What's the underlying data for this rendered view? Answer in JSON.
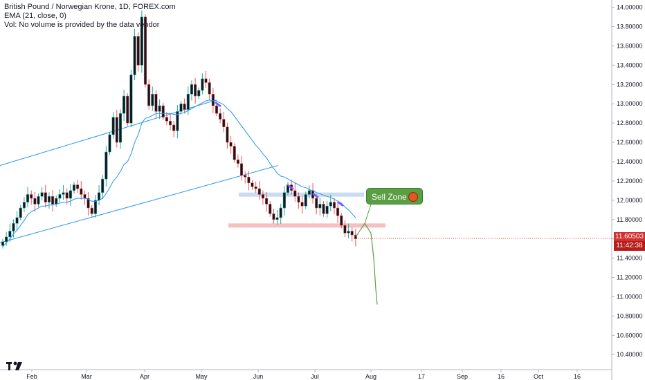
{
  "legend": {
    "title": "British Pound / Norwegian Krone, 1D, FOREX.com",
    "ema": "EMA (21, close, 0)",
    "volume": "Vol: No volume is provided by the data vendor"
  },
  "badges": {
    "last_price": "11.60503",
    "countdown": "11:42:38"
  },
  "annotations": {
    "sell_zone_label": "Sell Zone"
  },
  "colors": {
    "up_candle": "#26a69a",
    "down_candle": "#ef5350",
    "candle_body": "#131722",
    "ema": "#2196f3",
    "channel": "#2196f3",
    "resistance_zone": "#bbd3ef",
    "support_zone": "#f6b4b4",
    "projection": "#5a9e44",
    "badge_red": "#d32f2f"
  },
  "chart_data": {
    "type": "line",
    "title": "British Pound / Norwegian Krone, 1D, FOREX.com",
    "xlabel": "",
    "ylabel": "",
    "x_ticks": [
      "Feb",
      "Mar",
      "Apr",
      "May",
      "Jun",
      "Jul",
      "Aug",
      "17",
      "Sep",
      "16",
      "Oct",
      "16"
    ],
    "y_ticks": [
      "14.00000",
      "13.80000",
      "13.60000",
      "13.40000",
      "13.20000",
      "13.00000",
      "12.80000",
      "12.60000",
      "12.40000",
      "12.20000",
      "12.00000",
      "11.80000",
      "11.60000",
      "11.40000",
      "11.20000",
      "11.00000",
      "10.80000",
      "10.60000",
      "10.40000"
    ],
    "ylim": [
      10.28,
      14.04
    ],
    "last_price": 11.60503,
    "series": [
      {
        "kind": "close",
        "values": [
          11.57,
          11.62,
          11.68,
          11.76,
          11.82,
          11.92,
          11.98,
          12.06,
          12.02,
          11.96,
          12.04,
          12.08,
          11.98,
          12.04,
          11.96,
          12.02,
          12.06,
          12.08,
          12.02,
          12.1,
          12.16,
          12.12,
          12.06,
          12.02,
          11.92,
          11.86,
          12.0,
          12.08,
          12.22,
          12.5,
          12.68,
          12.86,
          12.6,
          12.9,
          13.08,
          12.8,
          13.3,
          13.7,
          13.4,
          13.9,
          13.2,
          12.98,
          13.1,
          12.92,
          12.98,
          12.86,
          12.82,
          12.78,
          12.72,
          12.92,
          13.0,
          12.94,
          13.1,
          13.2,
          13.08,
          13.14,
          13.26,
          13.22,
          13.1,
          12.98,
          12.9,
          12.84,
          12.76,
          12.6,
          12.56,
          12.42,
          12.38,
          12.26,
          12.24,
          12.18,
          12.14,
          12.12,
          12.06,
          12.02,
          11.96,
          11.86,
          11.8,
          11.82,
          11.92,
          12.08,
          12.16,
          12.1,
          12.04,
          11.98,
          11.94,
          12.06,
          12.1,
          12.02,
          11.92,
          11.96,
          11.86,
          11.94,
          11.98,
          11.92,
          11.84,
          11.74,
          11.66,
          11.68,
          11.64,
          11.6
        ]
      },
      {
        "kind": "ema-21",
        "values": [
          11.52,
          11.56,
          11.6,
          11.65,
          11.69,
          11.74,
          11.79,
          11.85,
          11.88,
          11.9,
          11.92,
          11.94,
          11.94,
          11.95,
          11.95,
          11.96,
          11.97,
          11.98,
          11.98,
          11.99,
          12.01,
          12.02,
          12.02,
          12.02,
          12.01,
          11.99,
          11.99,
          12.0,
          12.02,
          12.07,
          12.13,
          12.2,
          12.24,
          12.3,
          12.37,
          12.4,
          12.48,
          12.6,
          12.68,
          12.8,
          12.85,
          12.86,
          12.88,
          12.9,
          12.9,
          12.9,
          12.9,
          12.9,
          12.89,
          12.89,
          12.9,
          12.91,
          12.93,
          12.95,
          12.97,
          12.99,
          13.01,
          13.03,
          13.04,
          13.03,
          13.03,
          13.01,
          12.99,
          12.95,
          12.92,
          12.87,
          12.82,
          12.77,
          12.72,
          12.67,
          12.62,
          12.57,
          12.53,
          12.48,
          12.44,
          12.38,
          12.33,
          12.28,
          12.25,
          12.24,
          12.22,
          12.2,
          12.18,
          12.16,
          12.14,
          12.13,
          12.11,
          12.1,
          12.08,
          12.07,
          12.05,
          12.04,
          12.03,
          12.01,
          11.99,
          11.97,
          11.93,
          11.9,
          11.86,
          11.82
        ]
      }
    ],
    "channel_upper": {
      "from": [
        0,
        12.36
      ],
      "to": [
        60,
        13.04
      ]
    },
    "channel_lower": {
      "from": [
        0,
        11.56
      ],
      "to": [
        90,
        12.36
      ]
    },
    "resistance_zone": [
      12.04,
      12.08
    ],
    "support_zone": [
      11.72,
      11.76
    ],
    "projection": [
      11.62,
      11.76,
      11.66,
      11.4,
      11.08,
      10.92
    ]
  }
}
